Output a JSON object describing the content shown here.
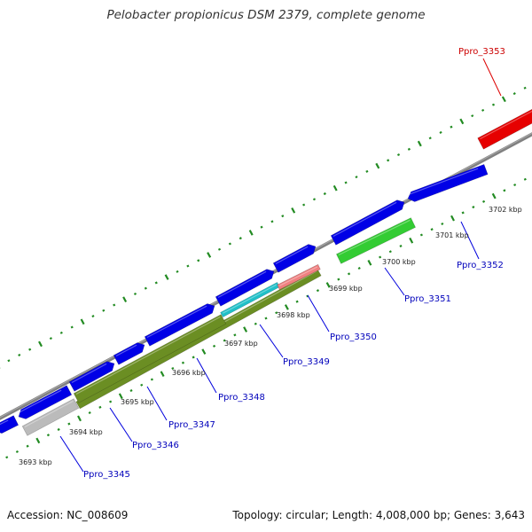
{
  "title": "Pelobacter propionicus DSM 2379, complete genome",
  "footer": {
    "accession": "Accession: NC_008609",
    "stats": "Topology: circular; Length: 4,008,000 bp; Genes: 3,643"
  },
  "colors": {
    "blue": "#0000e6",
    "red": "#e60000",
    "green": "#33cc33",
    "olive": "#6b8e23",
    "cyan": "#20c0c8",
    "salmon": "#f08080",
    "gray": "#bbbbbb",
    "backbone": "#888888",
    "tick": "#228b22",
    "gene_label": "#0000bb",
    "gene_label_red": "#cc0000"
  },
  "ticks": [
    {
      "label": "3693 kbp"
    },
    {
      "label": "3694 kbp"
    },
    {
      "label": "3695 kbp"
    },
    {
      "label": "3696 kbp"
    },
    {
      "label": "3697 kbp"
    },
    {
      "label": "3698 kbp"
    },
    {
      "label": "3699 kbp"
    },
    {
      "label": "3700 kbp"
    },
    {
      "label": "3701 kbp"
    },
    {
      "label": "3702 kbp"
    }
  ],
  "gene_labels": [
    {
      "label": "Ppro_3345",
      "color": "blue"
    },
    {
      "label": "Ppro_3346",
      "color": "blue"
    },
    {
      "label": "Ppro_3347",
      "color": "blue"
    },
    {
      "label": "Ppro_3348",
      "color": "blue"
    },
    {
      "label": "Ppro_3349",
      "color": "blue"
    },
    {
      "label": "Ppro_3350",
      "color": "blue"
    },
    {
      "label": "Ppro_3351",
      "color": "blue"
    },
    {
      "label": "Ppro_3352",
      "color": "blue"
    },
    {
      "label": "Ppro_3353",
      "color": "red"
    }
  ]
}
